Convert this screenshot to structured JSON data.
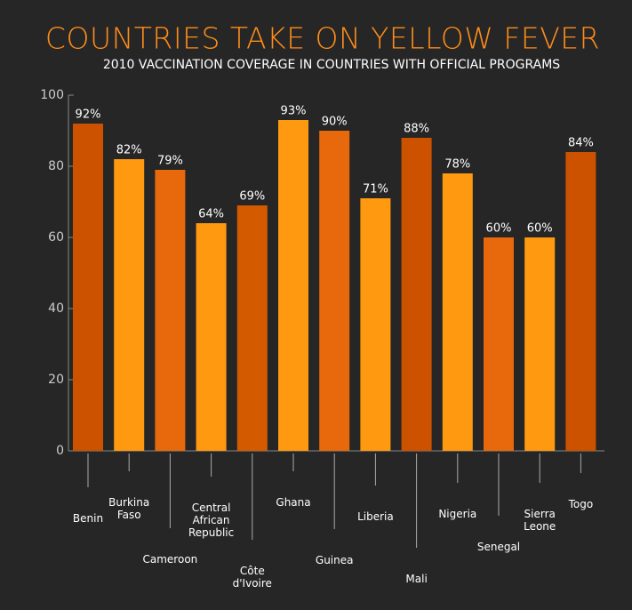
{
  "chart_data": {
    "type": "bar",
    "title": "COUNTRIES TAKE ON YELLOW FEVER",
    "subtitle": "2010 VACCINATION COVERAGE IN COUNTRIES WITH OFFICIAL PROGRAMS",
    "categories": [
      "Benin",
      "Burkina Faso",
      "Cameroon",
      "Central African Republic",
      "Côte d'Ivoire",
      "Ghana",
      "Guinea",
      "Liberia",
      "Mali",
      "Nigeria",
      "Senegal",
      "Sierra Leone",
      "Togo"
    ],
    "values": [
      92,
      82,
      79,
      64,
      69,
      93,
      90,
      71,
      88,
      78,
      60,
      60,
      84
    ],
    "value_labels": [
      "92%",
      "82%",
      "79%",
      "64%",
      "69%",
      "93%",
      "90%",
      "71%",
      "88%",
      "78%",
      "60%",
      "60%",
      "84%"
    ],
    "colors": [
      "#cc5200",
      "#ff9a10",
      "#e8680c",
      "#ff9a10",
      "#d45a00",
      "#ff9a10",
      "#e8680c",
      "#ff9a10",
      "#cc5200",
      "#ff9a10",
      "#e8680c",
      "#ff9a10",
      "#cc5200"
    ],
    "ylim": [
      0,
      100
    ],
    "yticks": [
      0,
      20,
      40,
      60,
      80,
      100
    ]
  }
}
